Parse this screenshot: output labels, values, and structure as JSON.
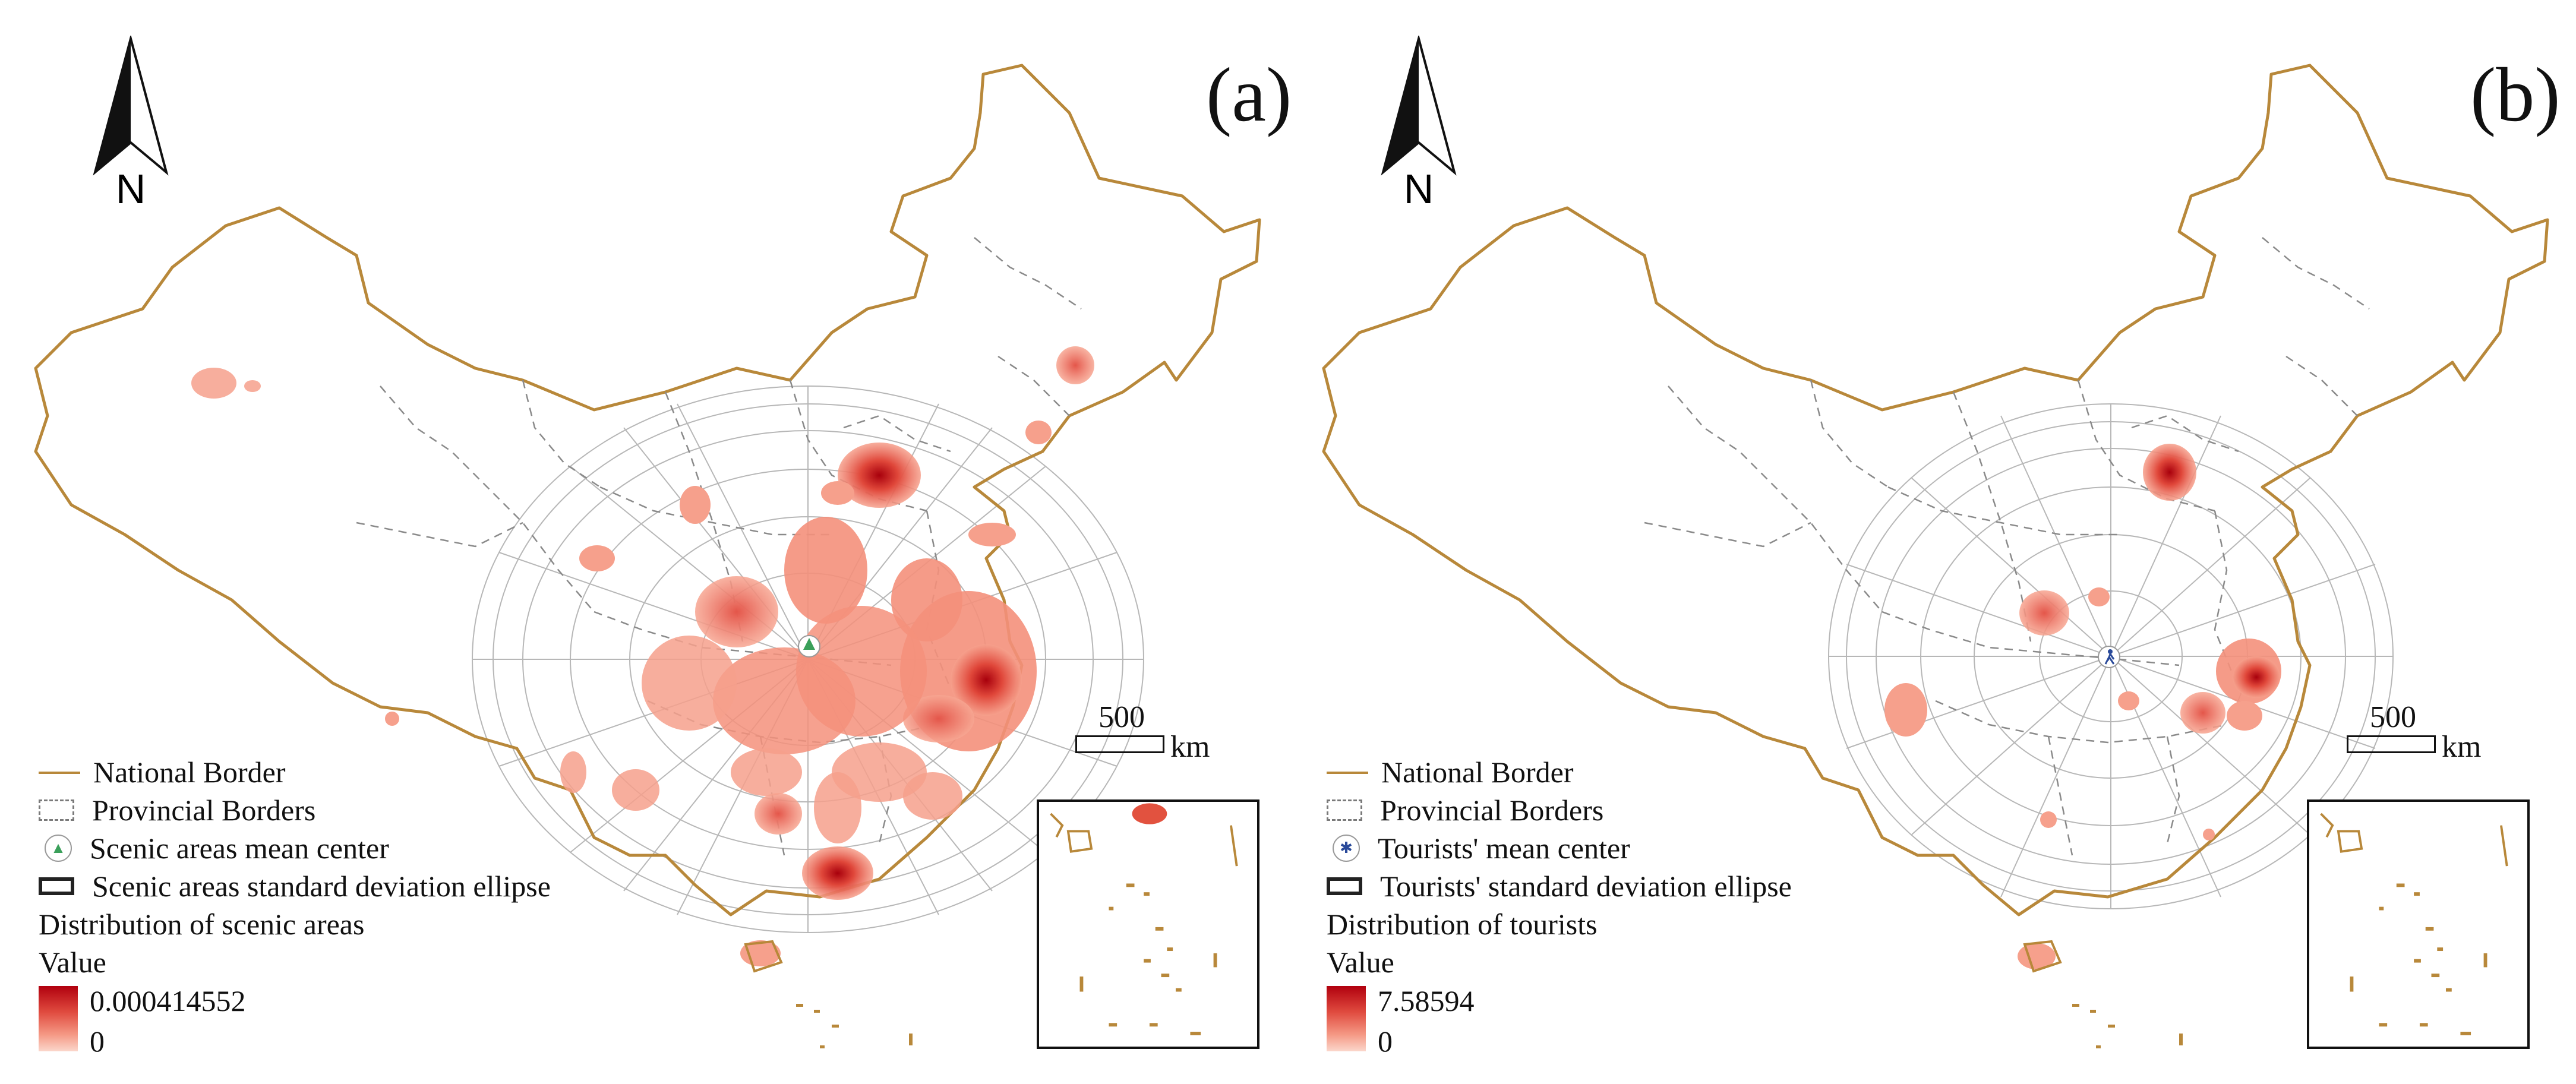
{
  "panels": [
    {
      "id": "a",
      "label": "(a)",
      "north_label": "N",
      "scale": {
        "value": "500",
        "unit": "km"
      },
      "legend": {
        "national_border": "National Border",
        "provincial_borders": "Provincial Borders",
        "mean_center": "Scenic areas mean center",
        "sd_ellipse": "Scenic areas standard deviation ellipse",
        "distribution_title": "Distribution of scenic areas",
        "value_label": "Value",
        "max_value": "0.000414552",
        "min_value": "0"
      },
      "mean_center_icon": "tree-icon"
    },
    {
      "id": "b",
      "label": "(b)",
      "north_label": "N",
      "scale": {
        "value": "500",
        "unit": "km"
      },
      "legend": {
        "national_border": "National Border",
        "provincial_borders": "Provincial Borders",
        "mean_center": "Tourists' mean center",
        "sd_ellipse": "Tourists' standard deviation ellipse",
        "distribution_title": "Distribution of tourists",
        "value_label": "Value",
        "max_value": "7.58594",
        "min_value": "0"
      },
      "mean_center_icon": "walking-person-icon"
    }
  ],
  "colors": {
    "national_border": "#b8883a",
    "provincial_border": "#8a8a8a",
    "density_high": "#b1000e",
    "density_low": "#fbd7cc",
    "ellipse_lines": "#9a9a9a"
  }
}
